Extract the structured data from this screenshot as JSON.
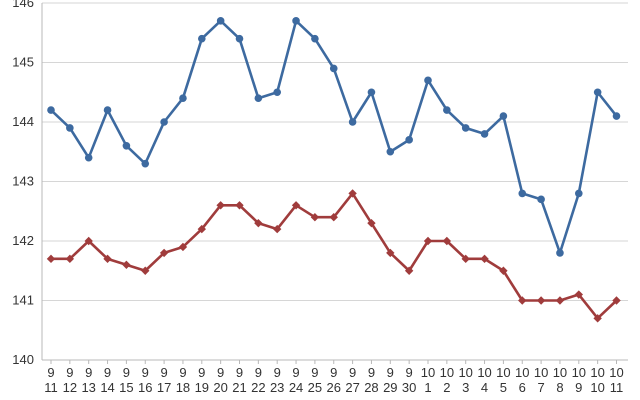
{
  "chart_data": {
    "type": "line",
    "title": "",
    "xlabel": "",
    "ylabel": "",
    "ylim": [
      140,
      146
    ],
    "yticks": [
      "140",
      "141",
      "142",
      "143",
      "144",
      "145",
      "146"
    ],
    "categories": [
      {
        "month": "9",
        "day": "11"
      },
      {
        "month": "9",
        "day": "12"
      },
      {
        "month": "9",
        "day": "13"
      },
      {
        "month": "9",
        "day": "14"
      },
      {
        "month": "9",
        "day": "15"
      },
      {
        "month": "9",
        "day": "16"
      },
      {
        "month": "9",
        "day": "17"
      },
      {
        "month": "9",
        "day": "18"
      },
      {
        "month": "9",
        "day": "19"
      },
      {
        "month": "9",
        "day": "20"
      },
      {
        "month": "9",
        "day": "21"
      },
      {
        "month": "9",
        "day": "22"
      },
      {
        "month": "9",
        "day": "23"
      },
      {
        "month": "9",
        "day": "24"
      },
      {
        "month": "9",
        "day": "25"
      },
      {
        "month": "9",
        "day": "26"
      },
      {
        "month": "9",
        "day": "27"
      },
      {
        "month": "9",
        "day": "28"
      },
      {
        "month": "9",
        "day": "29"
      },
      {
        "month": "9",
        "day": "30"
      },
      {
        "month": "10",
        "day": "1"
      },
      {
        "month": "10",
        "day": "2"
      },
      {
        "month": "10",
        "day": "3"
      },
      {
        "month": "10",
        "day": "4"
      },
      {
        "month": "10",
        "day": "5"
      },
      {
        "month": "10",
        "day": "6"
      },
      {
        "month": "10",
        "day": "7"
      },
      {
        "month": "10",
        "day": "8"
      },
      {
        "month": "10",
        "day": "9"
      },
      {
        "month": "10",
        "day": "10"
      },
      {
        "month": "10",
        "day": "11"
      }
    ],
    "series": [
      {
        "color": "#3d6aa0",
        "marker": "circle",
        "values": [
          144.2,
          143.9,
          143.4,
          144.2,
          143.6,
          143.3,
          144.0,
          144.4,
          145.4,
          145.7,
          145.4,
          144.4,
          144.5,
          145.7,
          145.4,
          144.9,
          144.0,
          144.5,
          143.5,
          143.7,
          144.7,
          144.2,
          143.9,
          143.8,
          144.1,
          142.8,
          142.7,
          141.8,
          142.8,
          144.5,
          144.1
        ]
      },
      {
        "color": "#a03c3c",
        "marker": "diamond",
        "values": [
          141.7,
          141.7,
          142.0,
          141.7,
          141.6,
          141.5,
          141.8,
          141.9,
          142.2,
          142.6,
          142.6,
          142.3,
          142.2,
          142.6,
          142.4,
          142.4,
          142.8,
          142.3,
          141.8,
          141.5,
          142.0,
          142.0,
          141.7,
          141.7,
          141.5,
          141.0,
          141.0,
          141.0,
          141.1,
          140.7,
          141.0
        ]
      }
    ],
    "grid": true,
    "legend": "none"
  }
}
